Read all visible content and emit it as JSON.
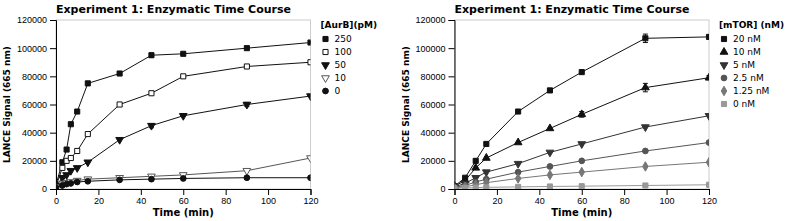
{
  "chart_data": [
    {
      "type": "line",
      "title": "Experiment 1: Enzymatic Time Course",
      "x_label": "Time (min)",
      "y_label": "LANCE Signal (665 nm)",
      "legend_title": "[AurB](pM)",
      "legend": "right",
      "xlim": [
        0,
        120
      ],
      "ylim": [
        0,
        120000
      ],
      "xticks": [
        0,
        20,
        40,
        60,
        80,
        100,
        120
      ],
      "yticks": [
        0,
        20000,
        40000,
        60000,
        80000,
        100000,
        120000
      ],
      "x": [
        0,
        3,
        5,
        7,
        10,
        15,
        30,
        45,
        60,
        90,
        120
      ],
      "series": [
        {
          "name": "250",
          "color": "#111111",
          "marker": "square",
          "values": [
            3000,
            19000,
            28000,
            46000,
            55000,
            75000,
            82000,
            95000,
            96000,
            100000,
            104000
          ],
          "errors": [
            0,
            0,
            0,
            0,
            0,
            0,
            0,
            1500,
            0,
            1000,
            800
          ]
        },
        {
          "name": "100",
          "color": "#111111",
          "marker": "square-open",
          "values": [
            2000,
            15000,
            20000,
            22000,
            27000,
            39000,
            60000,
            68000,
            80000,
            87000,
            90000
          ],
          "errors": [
            0,
            0,
            0,
            0,
            0,
            0,
            0,
            0,
            0,
            0,
            0
          ]
        },
        {
          "name": "50",
          "color": "#111111",
          "marker": "triangle-down",
          "values": [
            2000,
            8000,
            10000,
            13000,
            15000,
            19000,
            35000,
            45000,
            52000,
            60000,
            66000
          ],
          "errors": [
            0,
            0,
            0,
            0,
            0,
            0,
            0,
            1500,
            0,
            1500,
            0
          ]
        },
        {
          "name": "10",
          "color": "#555555",
          "marker": "triangle-down-open",
          "values": [
            1500,
            3500,
            4500,
            5000,
            6000,
            7000,
            8000,
            9000,
            10000,
            13000,
            22000
          ],
          "errors": [
            0,
            0,
            0,
            0,
            0,
            0,
            0,
            0,
            0,
            0,
            0
          ]
        },
        {
          "name": "0",
          "color": "#111111",
          "marker": "circle",
          "values": [
            1000,
            2500,
            3500,
            4000,
            5000,
            5500,
            6500,
            7000,
            7500,
            8000,
            8000
          ],
          "errors": [
            0,
            0,
            0,
            0,
            0,
            0,
            0,
            0,
            0,
            0,
            0
          ]
        }
      ]
    },
    {
      "type": "line",
      "title": "Experiment 1: Enzymatic Time Course",
      "x_label": "Time (min)",
      "y_label": "LANCE Signal (665 nm)",
      "legend_title": "[mTOR] (nM)",
      "legend": "right",
      "xlim": [
        0,
        120
      ],
      "ylim": [
        0,
        120000
      ],
      "xticks": [
        0,
        20,
        40,
        60,
        80,
        100,
        120
      ],
      "yticks": [
        0,
        20000,
        40000,
        60000,
        80000,
        100000,
        120000
      ],
      "x": [
        0,
        5,
        10,
        15,
        30,
        45,
        60,
        90,
        120
      ],
      "series": [
        {
          "name": "20 nM",
          "color": "#111111",
          "marker": "square",
          "values": [
            2000,
            8000,
            20000,
            32000,
            55000,
            70000,
            83000,
            107000,
            108000
          ],
          "errors": [
            0,
            0,
            0,
            0,
            0,
            0,
            0,
            3000,
            0
          ]
        },
        {
          "name": "10 nM",
          "color": "#111111",
          "marker": "triangle-up",
          "values": [
            2000,
            6000,
            15000,
            22000,
            33000,
            43000,
            53000,
            72000,
            79000
          ],
          "errors": [
            0,
            0,
            0,
            0,
            0,
            0,
            2000,
            3000,
            1500
          ]
        },
        {
          "name": "5 nM",
          "color": "#333333",
          "marker": "triangle-down",
          "values": [
            1500,
            4000,
            8000,
            12000,
            18000,
            26000,
            32000,
            44000,
            52000
          ],
          "errors": [
            0,
            0,
            0,
            0,
            0,
            0,
            0,
            0,
            0
          ]
        },
        {
          "name": "2.5 nM",
          "color": "#555555",
          "marker": "circle",
          "values": [
            1200,
            2500,
            5000,
            7000,
            12000,
            16000,
            20000,
            27000,
            33000
          ],
          "errors": [
            0,
            0,
            0,
            0,
            0,
            0,
            0,
            0,
            0
          ]
        },
        {
          "name": "1.25 nM",
          "color": "#777777",
          "marker": "diamond",
          "values": [
            800,
            1500,
            3000,
            4500,
            7500,
            10000,
            12000,
            16000,
            19000
          ],
          "errors": [
            0,
            0,
            0,
            0,
            0,
            0,
            0,
            0,
            0
          ]
        },
        {
          "name": "0 nM",
          "color": "#999999",
          "marker": "square",
          "values": [
            500,
            800,
            1000,
            1200,
            1500,
            1800,
            2000,
            2500,
            3000
          ],
          "errors": [
            0,
            0,
            0,
            0,
            0,
            0,
            0,
            0,
            0
          ]
        }
      ]
    }
  ]
}
